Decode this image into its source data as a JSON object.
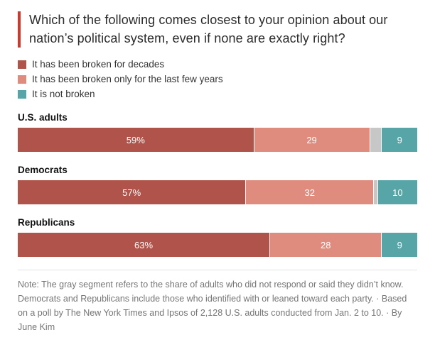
{
  "title": "Which of the following comes closest to your opinion about our nation’s political system, even if none are exactly right?",
  "accent_color": "#d0382e",
  "legend": [
    {
      "label": "It has been broken for decades",
      "color": "#b0544b"
    },
    {
      "label": "It has been broken only for the last few years",
      "color": "#df8c7f"
    },
    {
      "label": "It is not broken",
      "color": "#57a5a6"
    }
  ],
  "chart_data": {
    "type": "bar",
    "stacked": true,
    "orientation": "horizontal",
    "x_range": [
      0,
      100
    ],
    "grid": false,
    "legend_position": "top-left",
    "categories": [
      "U.S. adults",
      "Democrats",
      "Republicans"
    ],
    "series": [
      {
        "name": "It has been broken for decades",
        "color": "#b0544b",
        "values": [
          59,
          57,
          63
        ],
        "labels": [
          "59%",
          "57%",
          "63%"
        ]
      },
      {
        "name": "It has been broken only for the last few years",
        "color": "#df8c7f",
        "values": [
          29,
          32,
          28
        ],
        "labels": [
          "29",
          "32",
          "28"
        ]
      },
      {
        "name": "Did not respond or didn't know (gray segment)",
        "color": "#c7c7c7",
        "values": [
          3,
          1,
          0
        ],
        "labels": [
          "",
          "",
          ""
        ]
      },
      {
        "name": "It is not broken",
        "color": "#57a5a6",
        "values": [
          9,
          10,
          9
        ],
        "labels": [
          "9",
          "10",
          "9"
        ]
      }
    ]
  },
  "note": "Note: The gray segment refers to the share of adults who did not respond or said they didn’t know. Democrats and Republicans include those who identified with or leaned toward each party. · Based on a poll by The New York Times and Ipsos of 2,128 U.S. adults conducted from Jan. 2 to 10. · By June Kim"
}
